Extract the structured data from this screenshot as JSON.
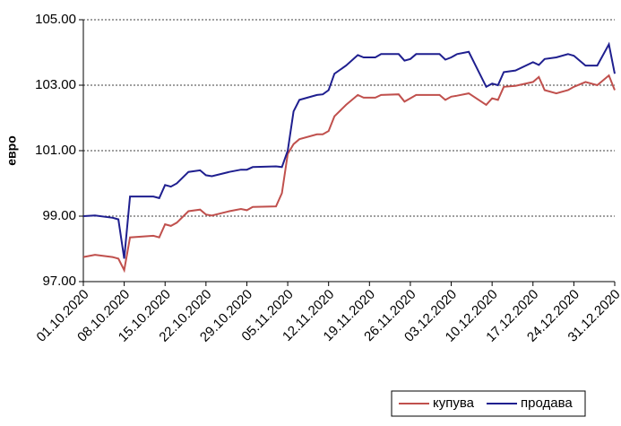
{
  "chart_data": {
    "type": "line",
    "y_label": "евро",
    "x": [
      "01.10.2020",
      "03.10.2020",
      "06.10.2020",
      "07.10.2020",
      "08.10.2020",
      "09.10.2020",
      "13.10.2020",
      "14.10.2020",
      "15.10.2020",
      "16.10.2020",
      "17.10.2020",
      "19.10.2020",
      "21.10.2020",
      "22.10.2020",
      "23.10.2020",
      "26.10.2020",
      "28.10.2020",
      "29.10.2020",
      "30.10.2020",
      "03.11.2020",
      "04.11.2020",
      "05.11.2020",
      "06.11.2020",
      "07.11.2020",
      "10.11.2020",
      "11.11.2020",
      "12.11.2020",
      "13.11.2020",
      "15.11.2020",
      "17.11.2020",
      "18.11.2020",
      "20.11.2020",
      "21.11.2020",
      "24.11.2020",
      "25.11.2020",
      "26.11.2020",
      "27.11.2020",
      "01.12.2020",
      "02.12.2020",
      "03.12.2020",
      "04.12.2020",
      "06.12.2020",
      "09.12.2020",
      "10.12.2020",
      "11.12.2020",
      "12.12.2020",
      "14.12.2020",
      "17.12.2020",
      "18.12.2020",
      "19.12.2020",
      "21.12.2020",
      "23.12.2020",
      "24.12.2020",
      "26.12.2020",
      "28.12.2020",
      "30.12.2020",
      "31.12.2020"
    ],
    "series": [
      {
        "name": "купува",
        "color": "#c0504d",
        "values": [
          97.75,
          97.82,
          97.75,
          97.7,
          97.35,
          98.35,
          98.4,
          98.35,
          98.75,
          98.7,
          98.8,
          99.15,
          99.2,
          99.05,
          99.02,
          99.15,
          99.22,
          99.18,
          99.28,
          99.3,
          99.7,
          100.9,
          101.2,
          101.35,
          101.5,
          101.5,
          101.6,
          102.05,
          102.4,
          102.7,
          102.62,
          102.62,
          102.7,
          102.72,
          102.5,
          102.6,
          102.7,
          102.7,
          102.55,
          102.65,
          102.68,
          102.75,
          102.4,
          102.6,
          102.55,
          102.95,
          102.98,
          103.1,
          103.25,
          102.85,
          102.75,
          102.85,
          102.95,
          103.1,
          103.0,
          103.3,
          102.85
        ]
      },
      {
        "name": "продава",
        "color": "#1f1f8f",
        "values": [
          99.0,
          99.02,
          98.95,
          98.9,
          97.7,
          99.6,
          99.6,
          99.55,
          99.95,
          99.9,
          100.0,
          100.35,
          100.4,
          100.25,
          100.22,
          100.35,
          100.42,
          100.42,
          100.5,
          100.52,
          100.5,
          101.0,
          102.2,
          102.55,
          102.7,
          102.72,
          102.85,
          103.35,
          103.6,
          103.92,
          103.85,
          103.85,
          103.95,
          103.95,
          103.75,
          103.8,
          103.95,
          103.95,
          103.78,
          103.85,
          103.95,
          104.02,
          102.95,
          103.05,
          103.0,
          103.4,
          103.45,
          103.7,
          103.62,
          103.8,
          103.85,
          103.95,
          103.9,
          103.6,
          103.6,
          104.25,
          103.35
        ]
      }
    ],
    "xlim": [
      "01.10.2020",
      "31.12.2020"
    ],
    "xticks": [
      "01.10.2020",
      "08.10.2020",
      "15.10.2020",
      "22.10.2020",
      "29.10.2020",
      "05.11.2020",
      "12.11.2020",
      "19.11.2020",
      "26.11.2020",
      "03.12.2020",
      "10.12.2020",
      "17.12.2020",
      "24.12.2020",
      "31.12.2020"
    ],
    "ylim": [
      97,
      105
    ],
    "yticks": [
      {
        "value": 97,
        "label": "97.00"
      },
      {
        "value": 99,
        "label": "99.00"
      },
      {
        "value": 101,
        "label": "101.00"
      },
      {
        "value": 103,
        "label": "103.00"
      },
      {
        "value": 105,
        "label": "105.00"
      }
    ],
    "grid": true,
    "legend": "bottom-right"
  }
}
